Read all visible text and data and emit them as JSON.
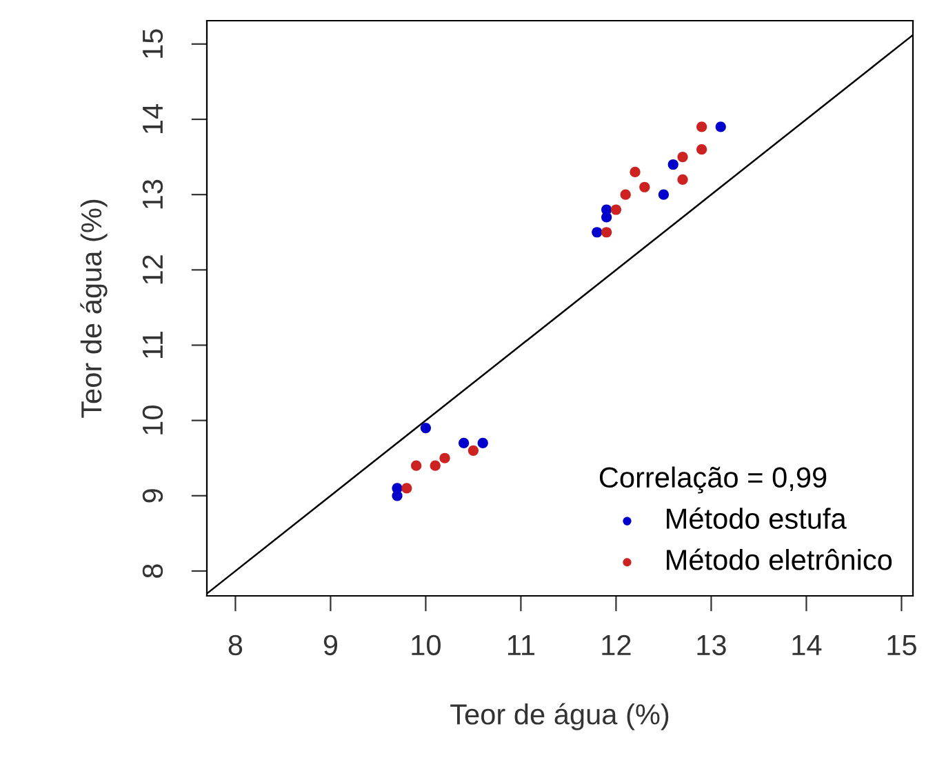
{
  "chart_data": {
    "type": "scatter",
    "xlabel": "Teor de água (%)",
    "ylabel": "Teor de água (%)",
    "legend_title": "Correlação = 0,99",
    "xlim": [
      7.7,
      15.12
    ],
    "ylim": [
      7.67,
      15.31
    ],
    "xticks": [
      8,
      9,
      10,
      11,
      12,
      13,
      14,
      15
    ],
    "yticks": [
      8,
      9,
      10,
      11,
      12,
      13,
      14,
      15
    ],
    "grid": false,
    "legend": "bottom right",
    "series": [
      {
        "name": "Método estufa",
        "color": "#0000cc",
        "marker": "circle",
        "x": [
          13.1,
          12.6,
          12.5,
          11.9,
          11.9,
          11.8,
          10.0,
          10.4,
          10.6,
          9.7,
          9.7
        ],
        "values": [
          13.9,
          13.4,
          13.0,
          12.8,
          12.7,
          12.5,
          9.9,
          9.7,
          9.7,
          9.1,
          9.0
        ]
      },
      {
        "name": "Método eletrônico",
        "color": "#cc2222",
        "marker": "circle",
        "x": [
          12.9,
          12.9,
          12.7,
          12.7,
          12.2,
          12.3,
          12.1,
          12.0,
          11.9,
          9.8,
          9.9,
          10.1,
          10.2,
          10.5
        ],
        "values": [
          13.9,
          13.6,
          13.5,
          13.2,
          13.3,
          13.1,
          13.0,
          12.8,
          12.5,
          9.1,
          9.4,
          9.4,
          9.5,
          9.6
        ]
      },
      {
        "type": "line",
        "color": "#000000",
        "line_style": "solid",
        "marker": "none",
        "x": [
          7.7,
          15.12
        ],
        "values": [
          7.7,
          15.12
        ]
      }
    ]
  }
}
